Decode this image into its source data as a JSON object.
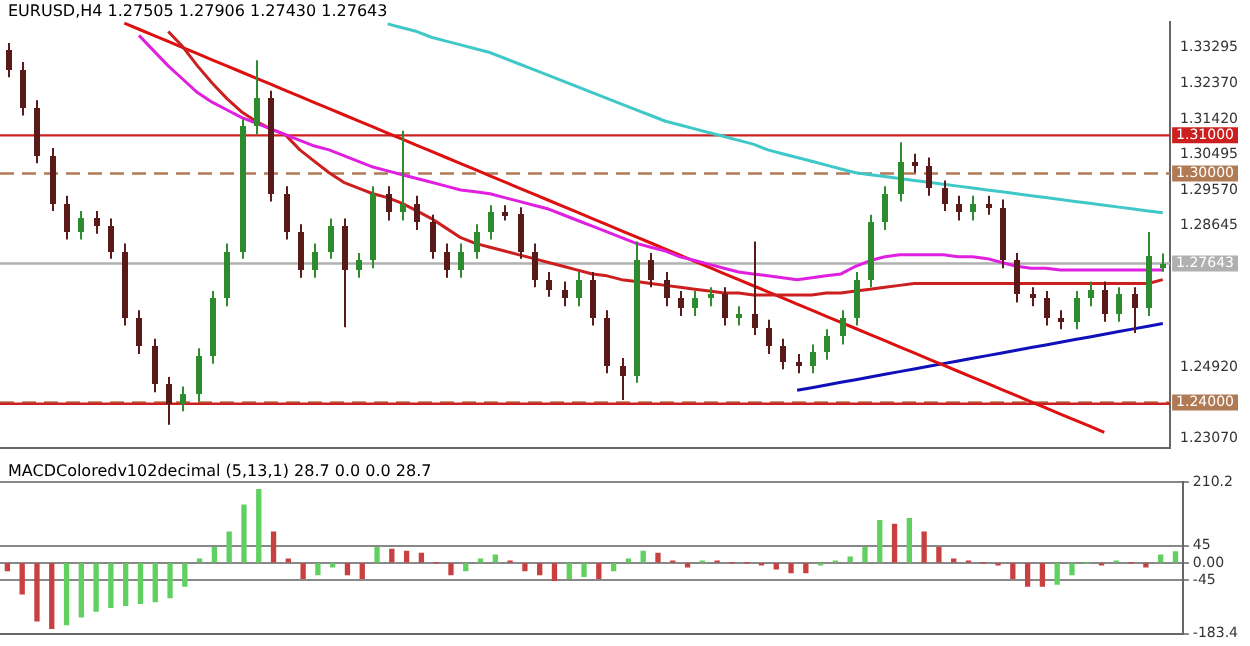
{
  "chart_data": [
    {
      "type": "candlestick",
      "title": "EURUSD,H4 1.27505 1.27906 1.27430 1.27643",
      "categories": [
        null,
        null,
        null,
        null,
        null,
        null,
        null,
        null,
        null,
        null,
        null,
        null,
        null,
        null,
        null,
        null,
        null,
        null,
        null,
        null,
        null,
        null,
        null,
        null,
        null,
        null,
        null,
        null,
        null,
        null,
        null,
        null,
        null,
        null,
        null,
        null,
        null,
        null,
        null,
        null,
        null,
        null,
        null,
        null,
        null,
        null,
        null,
        null,
        null,
        null,
        null,
        null,
        null,
        null,
        null,
        null,
        null,
        null,
        null,
        null,
        null,
        null,
        null,
        null,
        null,
        null,
        null,
        null,
        null,
        null,
        null,
        null,
        null,
        null,
        null,
        null,
        null,
        null,
        null,
        null
      ],
      "ohlc": [
        [
          1.3322,
          1.3342,
          1.3252,
          1.3272
        ],
        [
          1.3272,
          1.3292,
          1.3152,
          1.3172
        ],
        [
          1.3172,
          1.3192,
          1.3027,
          1.3047
        ],
        [
          1.3047,
          1.3067,
          1.2902,
          1.2922
        ],
        [
          1.2922,
          1.2942,
          1.2827,
          1.2847
        ],
        [
          1.2847,
          1.2902,
          1.2827,
          1.2882
        ],
        [
          1.2882,
          1.2902,
          1.2842,
          1.2862
        ],
        [
          1.2862,
          1.2882,
          1.2777,
          1.2797
        ],
        [
          1.2797,
          1.2817,
          1.2602,
          1.2622
        ],
        [
          1.2622,
          1.2642,
          1.2527,
          1.2547
        ],
        [
          1.2547,
          1.2567,
          1.2427,
          1.2447
        ],
        [
          1.2447,
          1.2467,
          1.2342,
          1.2397
        ],
        [
          1.2397,
          1.2442,
          1.2377,
          1.2422
        ],
        [
          1.2422,
          1.2542,
          1.2402,
          1.2522
        ],
        [
          1.2522,
          1.2692,
          1.2502,
          1.2672
        ],
        [
          1.2672,
          1.2817,
          1.2652,
          1.2797
        ],
        [
          1.2797,
          1.3142,
          1.2777,
          1.3122
        ],
        [
          1.3122,
          1.3297,
          1.3102,
          1.3197
        ],
        [
          1.3197,
          1.3217,
          1.2927,
          1.2947
        ],
        [
          1.2947,
          1.2967,
          1.2827,
          1.2847
        ],
        [
          1.2847,
          1.2867,
          1.2727,
          1.2747
        ],
        [
          1.2747,
          1.2817,
          1.2727,
          1.2797
        ],
        [
          1.2797,
          1.2882,
          1.2777,
          1.2862
        ],
        [
          1.2862,
          1.2882,
          1.2597,
          1.2747
        ],
        [
          1.2747,
          1.2792,
          1.2727,
          1.2772
        ],
        [
          1.2772,
          1.2967,
          1.2752,
          1.2947
        ],
        [
          1.2947,
          1.2967,
          1.2877,
          1.2897
        ],
        [
          1.2897,
          1.3112,
          1.2877,
          1.2922
        ],
        [
          1.2922,
          1.2942,
          1.2852,
          1.2872
        ],
        [
          1.2872,
          1.2892,
          1.2777,
          1.2797
        ],
        [
          1.2797,
          1.2817,
          1.2727,
          1.2747
        ],
        [
          1.2747,
          1.2817,
          1.2727,
          1.2797
        ],
        [
          1.2797,
          1.2867,
          1.2777,
          1.2847
        ],
        [
          1.2847,
          1.2917,
          1.2827,
          1.2897
        ],
        [
          1.2897,
          1.2917,
          1.2877,
          1.2892
        ],
        [
          1.2892,
          1.2912,
          1.2777,
          1.2797
        ],
        [
          1.2797,
          1.2817,
          1.2702,
          1.2722
        ],
        [
          1.2722,
          1.2742,
          1.2677,
          1.2697
        ],
        [
          1.2697,
          1.2717,
          1.2652,
          1.2672
        ],
        [
          1.2672,
          1.2742,
          1.2652,
          1.2722
        ],
        [
          1.2722,
          1.2742,
          1.2602,
          1.2622
        ],
        [
          1.2622,
          1.2642,
          1.2477,
          1.2497
        ],
        [
          1.2497,
          1.2517,
          1.2407,
          1.2472
        ],
        [
          1.2472,
          1.2822,
          1.2452,
          1.2772
        ],
        [
          1.2772,
          1.2792,
          1.2702,
          1.2722
        ],
        [
          1.2722,
          1.2742,
          1.2652,
          1.2672
        ],
        [
          1.2672,
          1.2692,
          1.2627,
          1.2647
        ],
        [
          1.2647,
          1.2692,
          1.2627,
          1.2672
        ],
        [
          1.2672,
          1.2702,
          1.2652,
          1.2682
        ],
        [
          1.2682,
          1.2702,
          1.2602,
          1.2622
        ],
        [
          1.2622,
          1.2652,
          1.2602,
          1.2632
        ],
        [
          1.2632,
          1.2822,
          1.2577,
          1.2597
        ],
        [
          1.2597,
          1.2617,
          1.2527,
          1.2547
        ],
        [
          1.2547,
          1.2567,
          1.2487,
          1.2507
        ],
        [
          1.2507,
          1.2527,
          1.2477,
          1.2497
        ],
        [
          1.2497,
          1.2552,
          1.2477,
          1.2532
        ],
        [
          1.2532,
          1.2592,
          1.2512,
          1.2572
        ],
        [
          1.2572,
          1.2642,
          1.2552,
          1.2622
        ],
        [
          1.2622,
          1.2742,
          1.2602,
          1.2722
        ],
        [
          1.2722,
          1.2892,
          1.2702,
          1.2872
        ],
        [
          1.2872,
          1.2967,
          1.2852,
          1.2947
        ],
        [
          1.2947,
          1.3082,
          1.2927,
          1.3032
        ],
        [
          1.3032,
          1.3052,
          1.3002,
          1.3022
        ],
        [
          1.3022,
          1.3042,
          1.2942,
          1.2962
        ],
        [
          1.2962,
          1.2982,
          1.2902,
          1.2922
        ],
        [
          1.2922,
          1.2942,
          1.2877,
          1.2897
        ],
        [
          1.2897,
          1.2942,
          1.2877,
          1.2922
        ],
        [
          1.2922,
          1.2942,
          1.2892,
          1.2912
        ],
        [
          1.2912,
          1.2932,
          1.2752,
          1.2772
        ],
        [
          1.2772,
          1.2792,
          1.2662,
          1.2682
        ],
        [
          1.2682,
          1.2702,
          1.2652,
          1.2672
        ],
        [
          1.2672,
          1.2692,
          1.2602,
          1.2622
        ],
        [
          1.2622,
          1.2642,
          1.2592,
          1.2612
        ],
        [
          1.2612,
          1.2692,
          1.2592,
          1.2672
        ],
        [
          1.2672,
          1.2717,
          1.2652,
          1.2697
        ],
        [
          1.2697,
          1.2717,
          1.2612,
          1.2632
        ],
        [
          1.2632,
          1.2702,
          1.2612,
          1.2682
        ],
        [
          1.2682,
          1.2702,
          1.2582,
          1.2647
        ],
        [
          1.2647,
          1.2847,
          1.2627,
          1.2782
        ],
        [
          1.27505,
          1.27906,
          1.2743,
          1.27643
        ]
      ],
      "colors": [
        "#5a1a1a",
        "#5a1a1a",
        "#5a1a1a",
        "#5a1a1a",
        "#5a1a1a",
        "#2e8b2e",
        "#5a1a1a",
        "#5a1a1a",
        "#5a1a1a",
        "#5a1a1a",
        "#5a1a1a",
        "#5a1a1a",
        "#2e8b2e",
        "#2e8b2e",
        "#2e8b2e",
        "#2e8b2e",
        "#2e8b2e",
        "#2e8b2e",
        "#5a1a1a",
        "#5a1a1a",
        "#5a1a1a",
        "#2e8b2e",
        "#2e8b2e",
        "#5a1a1a",
        "#2e8b2e",
        "#2e8b2e",
        "#5a1a1a",
        "#2e8b2e",
        "#5a1a1a",
        "#5a1a1a",
        "#5a1a1a",
        "#2e8b2e",
        "#2e8b2e",
        "#2e8b2e",
        "#5a1a1a",
        "#5a1a1a",
        "#5a1a1a",
        "#5a1a1a",
        "#5a1a1a",
        "#2e8b2e",
        "#5a1a1a",
        "#5a1a1a",
        "#5a1a1a",
        "#2e8b2e",
        "#5a1a1a",
        "#5a1a1a",
        "#5a1a1a",
        "#2e8b2e",
        "#2e8b2e",
        "#5a1a1a",
        "#2e8b2e",
        "#5a1a1a",
        "#5a1a1a",
        "#5a1a1a",
        "#5a1a1a",
        "#2e8b2e",
        "#2e8b2e",
        "#2e8b2e",
        "#2e8b2e",
        "#2e8b2e",
        "#2e8b2e",
        "#2e8b2e",
        "#5a1a1a",
        "#5a1a1a",
        "#5a1a1a",
        "#5a1a1a",
        "#2e8b2e",
        "#5a1a1a",
        "#5a1a1a",
        "#5a1a1a",
        "#5a1a1a",
        "#5a1a1a",
        "#5a1a1a",
        "#2e8b2e",
        "#2e8b2e",
        "#5a1a1a",
        "#2e8b2e",
        "#5a1a1a",
        "#2e8b2e",
        "#2e8b2e"
      ],
      "series": [
        {
          "type": "line",
          "color": "#e020e0",
          "values": [
            null,
            null,
            null,
            null,
            null,
            null,
            null,
            null,
            null,
            1.3362,
            1.3322,
            1.3282,
            1.3247,
            1.3212,
            1.3187,
            1.3167,
            1.3147,
            1.3132,
            1.3117,
            1.3102,
            1.3087,
            1.3072,
            1.3062,
            1.3047,
            1.3032,
            1.3017,
            1.3007,
            1.2997,
            1.2987,
            1.2977,
            1.2967,
            1.2957,
            1.2952,
            1.2947,
            1.2937,
            1.2927,
            1.2917,
            1.2907,
            1.2892,
            1.2877,
            1.2862,
            1.2847,
            1.2832,
            1.2817,
            1.2807,
            1.2797,
            1.2782,
            1.2772,
            1.2762,
            1.2752,
            1.2742,
            1.2737,
            1.2732,
            1.2727,
            1.2722,
            1.2727,
            1.2732,
            1.2737,
            1.2757,
            1.2772,
            1.2782,
            1.2787,
            1.2787,
            1.2787,
            1.2787,
            1.2782,
            1.2782,
            1.2777,
            1.2767,
            1.2757,
            1.2752,
            1.2752,
            1.2747,
            1.2747,
            1.2747,
            1.2747,
            1.2747,
            1.2747,
            1.2747,
            1.2747
          ]
        },
        {
          "type": "line",
          "color": "#cc2020",
          "values": [
            null,
            null,
            null,
            null,
            null,
            null,
            null,
            null,
            null,
            null,
            null,
            1.3372,
            1.3332,
            1.3282,
            1.3237,
            1.3197,
            1.3162,
            1.3137,
            1.3117,
            1.3102,
            1.3062,
            1.3032,
            1.3002,
            1.2977,
            1.2962,
            1.2947,
            1.2937,
            1.2922,
            1.2902,
            1.2882,
            1.2857,
            1.2832,
            1.2817,
            1.2807,
            1.2797,
            1.2787,
            1.2777,
            1.2767,
            1.2757,
            1.2747,
            1.2737,
            1.2732,
            1.2722,
            1.2717,
            1.2712,
            1.2707,
            1.2702,
            1.2697,
            1.2692,
            1.2687,
            1.2687,
            1.2682,
            1.2682,
            1.2682,
            1.2682,
            1.2682,
            1.2687,
            1.2687,
            1.2692,
            1.2697,
            1.2702,
            1.2707,
            1.2712,
            1.2712,
            1.2712,
            1.2712,
            1.2712,
            1.2712,
            1.2712,
            1.2712,
            1.2712,
            1.2712,
            1.2712,
            1.2712,
            1.2712,
            1.2712,
            1.2712,
            1.2712,
            1.2712,
            1.2722
          ]
        },
        {
          "type": "line",
          "color": "#40c8c8",
          "values": [
            null,
            null,
            null,
            null,
            null,
            null,
            null,
            null,
            null,
            null,
            null,
            null,
            null,
            null,
            null,
            null,
            null,
            null,
            null,
            null,
            null,
            null,
            null,
            null,
            null,
            null,
            1.3392,
            1.3382,
            1.3372,
            1.3357,
            1.3347,
            1.3337,
            1.3327,
            1.3317,
            1.3302,
            1.3287,
            1.3272,
            1.3257,
            1.3242,
            1.3227,
            1.3212,
            1.3197,
            1.3182,
            1.3167,
            1.3152,
            1.3137,
            1.3127,
            1.3117,
            1.3107,
            1.3097,
            1.3087,
            1.3077,
            1.3062,
            1.3052,
            1.3042,
            1.3032,
            1.3022,
            1.3012,
            1.3002,
            1.2997,
            1.2992,
            1.2987,
            1.2982,
            1.2977,
            1.2972,
            1.2967,
            1.2962,
            1.2957,
            1.2952,
            1.2947,
            1.2942,
            1.2937,
            1.2932,
            1.2927,
            1.2922,
            1.2917,
            1.2912,
            1.2907,
            1.2902,
            1.2897
          ]
        },
        {
          "type": "line",
          "color": "#dd1010",
          "values": [
            null,
            null,
            null,
            null,
            null,
            null,
            null,
            null,
            1.3394,
            1.3378,
            1.3362,
            1.3346,
            1.333,
            1.3314,
            1.3298,
            1.3282,
            1.3266,
            1.325,
            1.3234,
            1.3218,
            1.3202,
            1.3186,
            1.317,
            1.3154,
            1.3138,
            1.3122,
            1.3106,
            1.309,
            1.3074,
            1.3058,
            1.3042,
            1.3026,
            1.301,
            1.2994,
            1.2978,
            1.2962,
            1.2946,
            1.293,
            1.2914,
            1.2898,
            1.2882,
            1.2866,
            1.285,
            1.2834,
            1.2818,
            1.2802,
            1.2786,
            1.277,
            1.2754,
            1.2738,
            1.2722,
            1.2706,
            1.269,
            1.2674,
            1.2658,
            1.2642,
            1.2626,
            1.261,
            1.2594,
            1.2578,
            1.2562,
            1.2546,
            1.253,
            1.2514,
            1.2498,
            1.2482,
            1.2466,
            1.245,
            1.2434,
            1.2418,
            1.2402,
            1.2386,
            1.237,
            1.2354,
            1.2338,
            1.2322,
            null,
            null,
            null,
            null
          ]
        },
        {
          "type": "line",
          "color": "#1010bb",
          "values": [
            null,
            null,
            null,
            null,
            null,
            null,
            null,
            null,
            null,
            null,
            null,
            null,
            null,
            null,
            null,
            null,
            null,
            null,
            null,
            null,
            null,
            null,
            null,
            null,
            null,
            null,
            null,
            null,
            null,
            null,
            null,
            null,
            null,
            null,
            null,
            null,
            null,
            null,
            null,
            null,
            null,
            null,
            null,
            null,
            null,
            null,
            null,
            null,
            null,
            null,
            null,
            null,
            null,
            null,
            1.2432,
            1.2439,
            1.2446,
            1.2453,
            1.246,
            1.2467,
            1.2474,
            1.2481,
            1.2488,
            1.2495,
            1.2502,
            1.2509,
            1.2516,
            1.2523,
            1.253,
            1.2537,
            1.2544,
            1.2551,
            1.2558,
            1.2565,
            1.2572,
            1.2579,
            1.2586,
            1.2593,
            1.26,
            1.2607
          ]
        }
      ],
      "ref_lines": [
        {
          "axis": "y",
          "value": 1.31,
          "label": "1.31000",
          "color": "#cc2020"
        },
        {
          "axis": "y",
          "value": 1.3,
          "label": "1.30000",
          "color": "#b07a55",
          "line_style": "dashed"
        },
        {
          "axis": "y",
          "value": 1.27643,
          "label": "1.27643",
          "color": "#b0b0b0"
        },
        {
          "axis": "y",
          "value": 1.24,
          "label": "1.24000",
          "color": "#b07a55",
          "line_style": "dashed"
        },
        {
          "axis": "y",
          "value": 1.2397,
          "color": "#cc2020"
        }
      ],
      "ylim": [
        1.2282,
        1.3397
      ],
      "yticks": [
        {
          "value": 1.33295,
          "label": "1.33295"
        },
        {
          "value": 1.3237,
          "label": "1.32370"
        },
        {
          "value": 1.3142,
          "label": "1.31420"
        },
        {
          "value": 1.30495,
          "label": "1.30495"
        },
        {
          "value": 1.2957,
          "label": "1.29570"
        },
        {
          "value": 1.28645,
          "label": "1.28645"
        },
        {
          "value": 1.2492,
          "label": "1.24920"
        },
        {
          "value": 1.2307,
          "label": "1.23070"
        }
      ],
      "tick_labels": "y"
    },
    {
      "type": "bar",
      "title": "MACDColoredv102decimal (5,13,1) 28.7 0.0 0.0 28.7",
      "categories": [
        null,
        null,
        null,
        null,
        null,
        null,
        null,
        null,
        null,
        null,
        null,
        null,
        null,
        null,
        null,
        null,
        null,
        null,
        null,
        null,
        null,
        null,
        null,
        null,
        null,
        null,
        null,
        null,
        null,
        null,
        null,
        null,
        null,
        null,
        null,
        null,
        null,
        null,
        null,
        null,
        null,
        null,
        null,
        null,
        null,
        null,
        null,
        null,
        null,
        null,
        null,
        null,
        null,
        null,
        null,
        null,
        null,
        null,
        null,
        null,
        null,
        null,
        null,
        null,
        null,
        null,
        null,
        null,
        null,
        null,
        null,
        null,
        null,
        null,
        null,
        null,
        null,
        null,
        null,
        null
      ],
      "values": [
        -20,
        -80,
        -150,
        -170,
        -160,
        -140,
        -125,
        -115,
        -110,
        -105,
        -100,
        -90,
        -60,
        10,
        40,
        80,
        150,
        190,
        80,
        10,
        -40,
        -30,
        -10,
        -30,
        -40,
        40,
        35,
        30,
        25,
        0,
        -30,
        -20,
        10,
        20,
        5,
        -20,
        -30,
        -45,
        -40,
        -35,
        -40,
        -20,
        10,
        30,
        25,
        5,
        -10,
        5,
        5,
        0,
        0,
        -5,
        -15,
        -25,
        -25,
        -5,
        5,
        15,
        40,
        110,
        100,
        115,
        80,
        40,
        10,
        5,
        0,
        -5,
        -40,
        -60,
        -60,
        -55,
        -30,
        0,
        -5,
        5,
        0,
        -10,
        20,
        28.7
      ],
      "colors": [
        "#c84040",
        "#c84040",
        "#c84040",
        "#c84040",
        "#60d060",
        "#60d060",
        "#60d060",
        "#60d060",
        "#60d060",
        "#60d060",
        "#60d060",
        "#60d060",
        "#60d060",
        "#60d060",
        "#60d060",
        "#60d060",
        "#60d060",
        "#60d060",
        "#c84040",
        "#c84040",
        "#c84040",
        "#60d060",
        "#60d060",
        "#c84040",
        "#c84040",
        "#60d060",
        "#c84040",
        "#c84040",
        "#c84040",
        "#c84040",
        "#c84040",
        "#60d060",
        "#60d060",
        "#60d060",
        "#c84040",
        "#c84040",
        "#c84040",
        "#c84040",
        "#60d060",
        "#60d060",
        "#c84040",
        "#60d060",
        "#60d060",
        "#60d060",
        "#c84040",
        "#c84040",
        "#c84040",
        "#60d060",
        "#c84040",
        "#c84040",
        "#c84040",
        "#c84040",
        "#c84040",
        "#c84040",
        "#c84040",
        "#60d060",
        "#60d060",
        "#60d060",
        "#60d060",
        "#60d060",
        "#c84040",
        "#60d060",
        "#c84040",
        "#c84040",
        "#c84040",
        "#c84040",
        "#c84040",
        "#c84040",
        "#c84040",
        "#c84040",
        "#c84040",
        "#60d060",
        "#60d060",
        "#60d060",
        "#c84040",
        "#60d060",
        "#c84040",
        "#c84040",
        "#60d060",
        "#60d060"
      ],
      "ylim": [
        -183.4,
        210.2
      ],
      "yticks": [
        210.2,
        45,
        {
          "value": 0,
          "label": "0.00"
        },
        -45,
        -183.4
      ],
      "tick_labels": "y",
      "grid": "y"
    }
  ]
}
